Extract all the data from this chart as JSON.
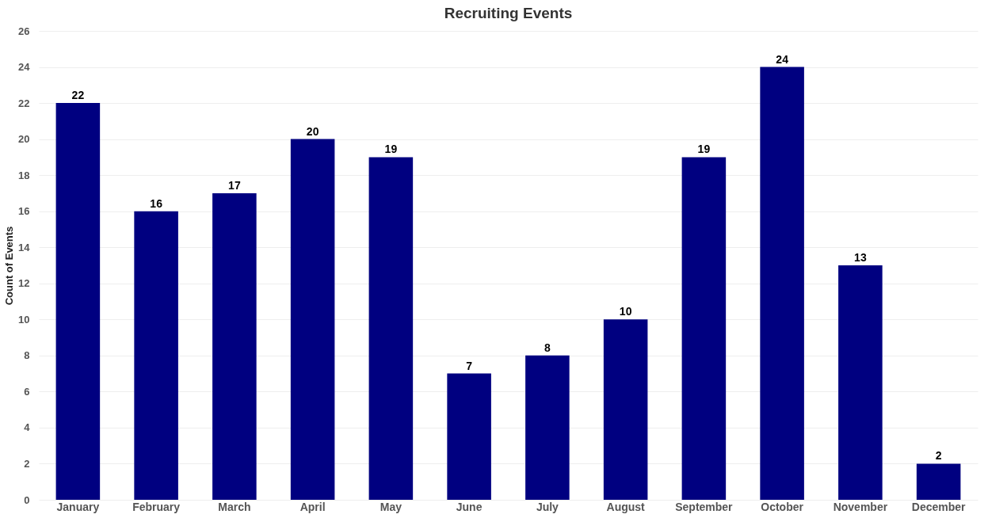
{
  "chart_data": {
    "type": "bar",
    "title": "Recruiting Events",
    "ylabel": "Count of Events",
    "categories": [
      "January",
      "February",
      "March",
      "April",
      "May",
      "June",
      "July",
      "August",
      "September",
      "October",
      "November",
      "December"
    ],
    "values": [
      22,
      16,
      17,
      20,
      19,
      7,
      8,
      10,
      19,
      24,
      13,
      2
    ],
    "color": "#000080",
    "ylim": [
      0,
      26
    ],
    "yticks": [
      0,
      2,
      4,
      6,
      8,
      10,
      12,
      14,
      16,
      18,
      20,
      22,
      24,
      26
    ],
    "grid": "y",
    "data_labels": true
  }
}
